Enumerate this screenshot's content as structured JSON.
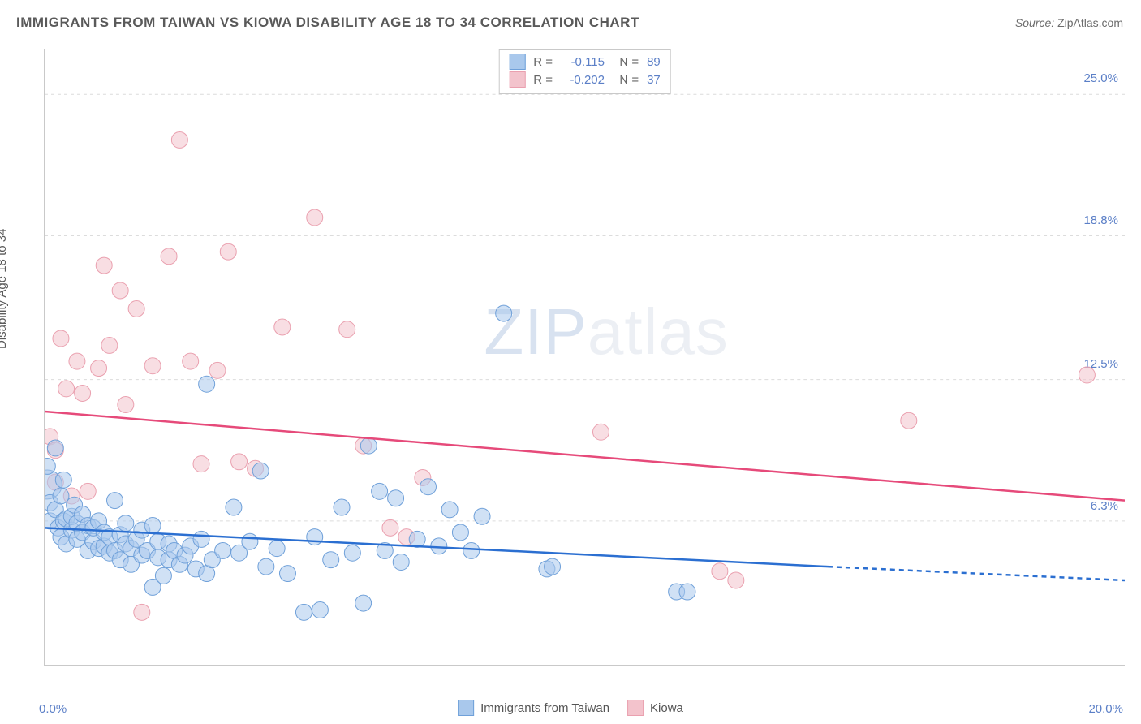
{
  "title": "IMMIGRANTS FROM TAIWAN VS KIOWA DISABILITY AGE 18 TO 34 CORRELATION CHART",
  "source_label": "Source:",
  "source_value": "ZipAtlas.com",
  "ylabel": "Disability Age 18 to 34",
  "watermark": {
    "part1": "ZIP",
    "part2": "atlas"
  },
  "chart": {
    "type": "scatter",
    "xlim": [
      0.0,
      20.0
    ],
    "ylim": [
      0.0,
      27.0
    ],
    "x_ticks_minor": [
      2,
      4,
      6,
      8,
      10,
      12,
      14,
      16,
      18
    ],
    "x_tick_labels": [
      {
        "value": 0.0,
        "label": "0.0%"
      },
      {
        "value": 20.0,
        "label": "20.0%"
      }
    ],
    "y_gridlines": [
      6.3,
      12.5,
      18.8,
      25.0
    ],
    "y_tick_labels": [
      {
        "value": 6.3,
        "label": "6.3%"
      },
      {
        "value": 12.5,
        "label": "12.5%"
      },
      {
        "value": 18.8,
        "label": "18.8%"
      },
      {
        "value": 25.0,
        "label": "25.0%"
      }
    ],
    "background_color": "#ffffff",
    "grid_color": "#dcdcdc",
    "axis_color": "#c9c9c9",
    "label_fontsize": 15,
    "title_fontsize": 17,
    "marker_radius": 10,
    "marker_opacity": 0.55,
    "line_width": 2.5
  },
  "series": [
    {
      "name": "Immigrants from Taiwan",
      "color_fill": "#a9c8ec",
      "color_stroke": "#6fa0d9",
      "line_color": "#2b6fd1",
      "R": "-0.115",
      "N": "89",
      "trend": {
        "x1": 0.0,
        "y1": 6.0,
        "x2": 14.5,
        "y2": 4.3,
        "x2_dash": 20.0,
        "y2_dash": 3.7
      },
      "points": [
        [
          0.05,
          8.7
        ],
        [
          0.1,
          7.1
        ],
        [
          0.1,
          6.3
        ],
        [
          0.2,
          6.8
        ],
        [
          0.2,
          9.5
        ],
        [
          0.25,
          6.0
        ],
        [
          0.3,
          7.4
        ],
        [
          0.3,
          5.6
        ],
        [
          0.35,
          6.3
        ],
        [
          0.35,
          8.1
        ],
        [
          0.4,
          6.4
        ],
        [
          0.4,
          5.3
        ],
        [
          0.5,
          5.9
        ],
        [
          0.5,
          6.5
        ],
        [
          0.55,
          7.0
        ],
        [
          0.6,
          5.5
        ],
        [
          0.6,
          6.2
        ],
        [
          0.7,
          5.8
        ],
        [
          0.7,
          6.6
        ],
        [
          0.8,
          5.0
        ],
        [
          0.8,
          6.1
        ],
        [
          0.9,
          5.4
        ],
        [
          0.9,
          6.0
        ],
        [
          1.0,
          5.1
        ],
        [
          1.0,
          6.3
        ],
        [
          1.1,
          5.2
        ],
        [
          1.1,
          5.8
        ],
        [
          1.2,
          4.9
        ],
        [
          1.2,
          5.6
        ],
        [
          1.3,
          7.2
        ],
        [
          1.3,
          5.0
        ],
        [
          1.4,
          4.6
        ],
        [
          1.4,
          5.7
        ],
        [
          1.5,
          5.3
        ],
        [
          1.5,
          6.2
        ],
        [
          1.6,
          4.4
        ],
        [
          1.6,
          5.1
        ],
        [
          1.7,
          5.5
        ],
        [
          1.8,
          4.8
        ],
        [
          1.8,
          5.9
        ],
        [
          1.9,
          5.0
        ],
        [
          2.0,
          6.1
        ],
        [
          2.0,
          3.4
        ],
        [
          2.1,
          4.7
        ],
        [
          2.1,
          5.4
        ],
        [
          2.2,
          3.9
        ],
        [
          2.3,
          4.6
        ],
        [
          2.3,
          5.3
        ],
        [
          2.4,
          5.0
        ],
        [
          2.5,
          4.4
        ],
        [
          2.6,
          4.8
        ],
        [
          2.7,
          5.2
        ],
        [
          2.8,
          4.2
        ],
        [
          2.9,
          5.5
        ],
        [
          3.0,
          4.0
        ],
        [
          3.0,
          12.3
        ],
        [
          3.1,
          4.6
        ],
        [
          3.3,
          5.0
        ],
        [
          3.5,
          6.9
        ],
        [
          3.6,
          4.9
        ],
        [
          3.8,
          5.4
        ],
        [
          4.0,
          8.5
        ],
        [
          4.1,
          4.3
        ],
        [
          4.3,
          5.1
        ],
        [
          4.5,
          4.0
        ],
        [
          4.8,
          2.3
        ],
        [
          5.0,
          5.6
        ],
        [
          5.1,
          2.4
        ],
        [
          5.3,
          4.6
        ],
        [
          5.5,
          6.9
        ],
        [
          5.7,
          4.9
        ],
        [
          5.9,
          2.7
        ],
        [
          6.0,
          9.6
        ],
        [
          6.2,
          7.6
        ],
        [
          6.3,
          5.0
        ],
        [
          6.5,
          7.3
        ],
        [
          6.6,
          4.5
        ],
        [
          6.9,
          5.5
        ],
        [
          7.1,
          7.8
        ],
        [
          7.3,
          5.2
        ],
        [
          7.5,
          6.8
        ],
        [
          7.7,
          5.8
        ],
        [
          7.9,
          5.0
        ],
        [
          8.1,
          6.5
        ],
        [
          8.5,
          15.4
        ],
        [
          9.3,
          4.2
        ],
        [
          9.4,
          4.3
        ],
        [
          11.7,
          3.2
        ],
        [
          11.9,
          3.2
        ]
      ],
      "large_points": [
        {
          "x": 0.05,
          "y": 7.9,
          "r": 18
        }
      ]
    },
    {
      "name": "Kiowa",
      "color_fill": "#f3c3cc",
      "color_stroke": "#eaa0af",
      "line_color": "#e64a7a",
      "R": "-0.202",
      "N": "37",
      "trend": {
        "x1": 0.0,
        "y1": 11.1,
        "x2": 20.0,
        "y2": 7.2
      },
      "points": [
        [
          0.1,
          10.0
        ],
        [
          0.2,
          9.4
        ],
        [
          0.2,
          8.0
        ],
        [
          0.3,
          14.3
        ],
        [
          0.4,
          12.1
        ],
        [
          0.5,
          7.4
        ],
        [
          0.6,
          13.3
        ],
        [
          0.7,
          11.9
        ],
        [
          0.8,
          7.6
        ],
        [
          1.0,
          13.0
        ],
        [
          1.1,
          17.5
        ],
        [
          1.2,
          14.0
        ],
        [
          1.4,
          16.4
        ],
        [
          1.5,
          11.4
        ],
        [
          1.7,
          15.6
        ],
        [
          1.8,
          2.3
        ],
        [
          2.0,
          13.1
        ],
        [
          2.3,
          17.9
        ],
        [
          2.5,
          23.0
        ],
        [
          2.7,
          13.3
        ],
        [
          2.9,
          8.8
        ],
        [
          3.2,
          12.9
        ],
        [
          3.4,
          18.1
        ],
        [
          3.6,
          8.9
        ],
        [
          3.9,
          8.6
        ],
        [
          4.4,
          14.8
        ],
        [
          5.0,
          19.6
        ],
        [
          5.6,
          14.7
        ],
        [
          5.9,
          9.6
        ],
        [
          6.4,
          6.0
        ],
        [
          6.7,
          5.6
        ],
        [
          7.0,
          8.2
        ],
        [
          10.3,
          10.2
        ],
        [
          12.5,
          4.1
        ],
        [
          12.8,
          3.7
        ],
        [
          16.0,
          10.7
        ],
        [
          19.3,
          12.7
        ]
      ]
    }
  ],
  "legend_bottom": [
    {
      "label": "Immigrants from Taiwan",
      "fill": "#a9c8ec",
      "stroke": "#6fa0d9"
    },
    {
      "label": "Kiowa",
      "fill": "#f3c3cc",
      "stroke": "#eaa0af"
    }
  ]
}
